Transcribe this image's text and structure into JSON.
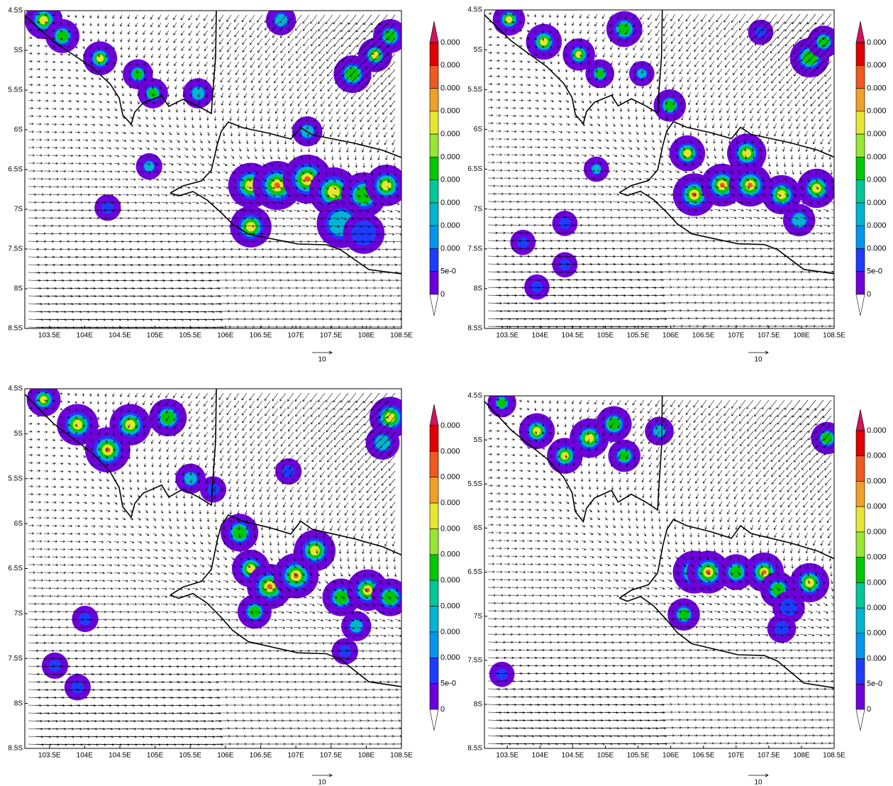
{
  "panels": [
    {
      "y_labels": [
        "4.5S",
        "5S",
        "5.5S",
        "6S",
        "6.5S",
        "7S",
        "7.5S",
        "8S",
        "8.5S"
      ],
      "x_labels": [
        "103.5E",
        "104E",
        "104.5E",
        "105E",
        "105.5E",
        "106E",
        "106.5E",
        "107E",
        "107.5E",
        "108E",
        "108.5E"
      ],
      "colorbar_labels": [
        "0.000",
        "0.000",
        "0.000",
        "0.000",
        "0.000",
        "0.000",
        "0.000",
        "0.000",
        "0.000",
        "0.000",
        "5e-0",
        "0"
      ],
      "vector_scale_label": "10"
    },
    {
      "y_labels": [
        "4.5S",
        "5S",
        "5.5S",
        "6S",
        "6.5S",
        "7S",
        "7.5S",
        "8S",
        "8.5S"
      ],
      "x_labels": [
        "103.5E",
        "104E",
        "104.5E",
        "105E",
        "105.5E",
        "106E",
        "106.5E",
        "107E",
        "107.5E",
        "108E",
        "108.5E"
      ],
      "colorbar_labels": [
        "0.000",
        "0.000",
        "0.000",
        "0.000",
        "0.000",
        "0.000",
        "0.000",
        "0.000",
        "0.000",
        "0.000",
        "5e-0",
        "0"
      ],
      "vector_scale_label": "10"
    },
    {
      "y_labels": [
        "4.5S",
        "5S",
        "5.5S",
        "6S",
        "6.5S",
        "7S",
        "7.5S",
        "8S",
        "8.5S"
      ],
      "x_labels": [
        "103.5E",
        "104E",
        "104.5E",
        "105E",
        "105.5E",
        "106E",
        "106.5E",
        "107E",
        "107.5E",
        "108E",
        "108.5E"
      ],
      "colorbar_labels": [
        "0.000",
        "0.000",
        "0.000",
        "0.000",
        "0.000",
        "0.000",
        "0.000",
        "0.000",
        "0.000",
        "0.000",
        "5e-0",
        "0"
      ],
      "vector_scale_label": "10"
    },
    {
      "y_labels": [
        "4.5S",
        "5S",
        "5.5S",
        "6S",
        "6.5S",
        "7S",
        "7.5S",
        "8S",
        "8.5S"
      ],
      "x_labels": [
        "103.5E",
        "104E",
        "104.5E",
        "105E",
        "105.5E",
        "106E",
        "106.5E",
        "107E",
        "107.5E",
        "108E",
        "108.5E"
      ],
      "colorbar_labels": [
        "0.000",
        "0.000",
        "0.000",
        "0.000",
        "0.000",
        "0.000",
        "0.000",
        "0.000",
        "0.000",
        "0.000",
        "5e-0",
        "0"
      ],
      "vector_scale_label": "10"
    }
  ]
}
